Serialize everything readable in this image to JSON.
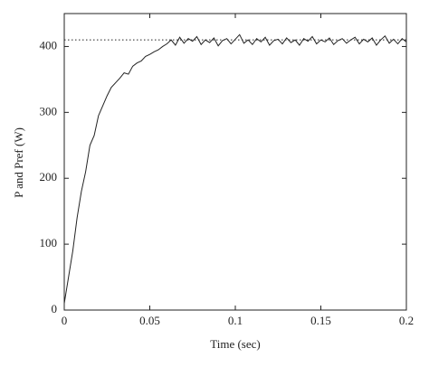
{
  "chart_data": {
    "type": "line",
    "x_label": "Time (sec)",
    "y_label": "P and Pref (W)",
    "xlim": [
      0,
      0.2
    ],
    "ylim": [
      0,
      450
    ],
    "xticks": [
      0,
      0.05,
      0.1,
      0.15,
      0.2
    ],
    "yticks": [
      0,
      100,
      200,
      300,
      400
    ],
    "grid": false,
    "x": [
      0,
      0.0025,
      0.005,
      0.0075,
      0.01,
      0.0125,
      0.015,
      0.0175,
      0.02,
      0.0225,
      0.025,
      0.0275,
      0.03,
      0.0325,
      0.035,
      0.0375,
      0.04,
      0.0425,
      0.045,
      0.0475,
      0.05,
      0.0525,
      0.055,
      0.0575,
      0.06,
      0.0625,
      0.065,
      0.0675,
      0.07,
      0.0725,
      0.075,
      0.0775,
      0.08,
      0.0825,
      0.085,
      0.0875,
      0.09,
      0.0925,
      0.095,
      0.0975,
      0.1,
      0.1025,
      0.105,
      0.1075,
      0.11,
      0.1125,
      0.115,
      0.1175,
      0.12,
      0.1225,
      0.125,
      0.1275,
      0.13,
      0.1325,
      0.135,
      0.1375,
      0.14,
      0.1425,
      0.145,
      0.1475,
      0.15,
      0.1525,
      0.155,
      0.1575,
      0.16,
      0.1625,
      0.165,
      0.1675,
      0.17,
      0.1725,
      0.175,
      0.1775,
      0.18,
      0.1825,
      0.185,
      0.1875,
      0.19,
      0.1925,
      0.195,
      0.1975,
      0.2
    ],
    "series": [
      {
        "color": "#222222",
        "linestyle": "solid",
        "values": [
          10,
          50,
          90,
          140,
          180,
          210,
          250,
          265,
          295,
          310,
          325,
          338,
          345,
          352,
          360,
          358,
          370,
          375,
          378,
          385,
          388,
          392,
          395,
          400,
          404,
          410,
          402,
          414,
          405,
          412,
          408,
          415,
          403,
          410,
          406,
          413,
          401,
          409,
          412,
          404,
          411,
          418,
          405,
          410,
          403,
          412,
          407,
          414,
          402,
          409,
          411,
          404,
          413,
          406,
          410,
          402,
          412,
          408,
          415,
          404,
          410,
          407,
          413,
          403,
          409,
          412,
          405,
          410,
          414,
          404,
          411,
          407,
          413,
          402,
          410,
          416,
          405,
          411,
          404,
          412,
          407
        ]
      },
      {
        "color": "#222222",
        "linestyle": "dotted",
        "x": [
          0,
          0.2
        ],
        "values": [
          410,
          410
        ]
      }
    ]
  }
}
